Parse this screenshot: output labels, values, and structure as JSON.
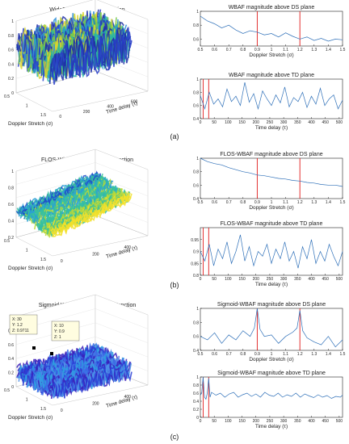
{
  "panels": [
    {
      "label": "(a)",
      "surface": {
        "title": "WideBand Ambiguity Function",
        "xlabel": "Doppler Stretch (σ)",
        "ylabel": "Time delay (τ)",
        "ztick_labels": [
          "0",
          "0.2",
          "0.4",
          "0.6",
          "0.8",
          "1"
        ],
        "xtick_labels": [
          "0.5",
          "1",
          "1.5"
        ],
        "ytick_labels": [
          "0",
          "200",
          "400",
          "600"
        ],
        "zlim": [
          0,
          1
        ],
        "style": "noisy"
      },
      "ds": {
        "type": "line",
        "title": "WBAF magnitude above DS plane",
        "xlabel": "Doppler Stretch (σ)",
        "xlim": [
          0.5,
          1.5
        ],
        "ylim": [
          0.5,
          1
        ],
        "xticks": [
          0.5,
          0.6,
          0.7,
          0.8,
          0.9,
          1,
          1.1,
          1.2,
          1.3,
          1.4,
          1.5
        ],
        "xtick_labels": [
          "0.5",
          "0.6",
          "0.7",
          "0.8",
          "0.9",
          "1",
          "1.1",
          "1.2",
          "1.3",
          "1.4",
          "1.5"
        ],
        "yticks": [
          0.6,
          0.8,
          1
        ],
        "ytick_labels": [
          "0.6",
          "0.8",
          "1"
        ],
        "red_lines": [
          0.9,
          1.2
        ],
        "x": [
          0.5,
          0.55,
          0.6,
          0.65,
          0.7,
          0.75,
          0.8,
          0.85,
          0.9,
          0.95,
          1.0,
          1.05,
          1.1,
          1.15,
          1.2,
          1.25,
          1.3,
          1.35,
          1.4,
          1.45,
          1.5
        ],
        "y": [
          0.93,
          0.86,
          0.82,
          0.76,
          0.8,
          0.73,
          0.68,
          0.72,
          0.7,
          0.66,
          0.68,
          0.63,
          0.69,
          0.64,
          0.6,
          0.63,
          0.58,
          0.61,
          0.57,
          0.6,
          0.59
        ]
      },
      "td": {
        "type": "line",
        "title": "WBAF magnitude above TD plane",
        "xlabel": "Time delay (τ)",
        "xlim": [
          0,
          512
        ],
        "ylim": [
          0.4,
          1
        ],
        "xticks": [
          0,
          50,
          100,
          150,
          200,
          250,
          300,
          350,
          400,
          450,
          500
        ],
        "xtick_labels": [
          "0",
          "50",
          "100",
          "150",
          "200",
          "250",
          "300",
          "350",
          "400",
          "450",
          "500"
        ],
        "yticks": [
          0.4,
          0.6,
          0.8,
          1
        ],
        "ytick_labels": [
          "0.4",
          "0.6",
          "0.8",
          "1"
        ],
        "red_lines": [
          10,
          30
        ],
        "x": [
          0,
          16,
          32,
          48,
          64,
          80,
          96,
          112,
          128,
          144,
          160,
          176,
          192,
          208,
          224,
          240,
          256,
          272,
          288,
          304,
          320,
          336,
          352,
          368,
          384,
          400,
          416,
          432,
          448,
          464,
          480,
          496,
          512
        ],
        "y": [
          0.75,
          0.55,
          0.8,
          0.62,
          0.7,
          0.58,
          0.85,
          0.66,
          0.74,
          0.6,
          0.95,
          0.65,
          0.78,
          0.55,
          0.82,
          0.7,
          0.6,
          0.76,
          0.64,
          0.88,
          0.58,
          0.72,
          0.66,
          0.8,
          0.57,
          0.74,
          0.62,
          0.86,
          0.6,
          0.7,
          0.76,
          0.55,
          0.68
        ]
      }
    },
    {
      "label": "(b)",
      "surface": {
        "title": "FLOS-WideBand Ambiguity Function",
        "xlabel": "Doppler Stretch (σ)",
        "ylabel": "Time delay (τ)",
        "ztick_labels": [
          "0.2",
          "0.4",
          "0.6",
          "0.8",
          "1"
        ],
        "xtick_labels": [
          "0.5",
          "1",
          "1.5"
        ],
        "ytick_labels": [
          "0",
          "200",
          "400"
        ],
        "zlim": [
          0.2,
          1
        ],
        "style": "smooth"
      },
      "ds": {
        "type": "line",
        "title": "FLOS-WBAF magnitude above DS plane",
        "xlabel": "Doppler Stretch (σ)",
        "xlim": [
          0.5,
          1.5
        ],
        "ylim": [
          0.4,
          1
        ],
        "xticks": [
          0.5,
          0.6,
          0.7,
          0.8,
          0.9,
          1,
          1.1,
          1.2,
          1.3,
          1.4,
          1.5
        ],
        "xtick_labels": [
          "0.5",
          "0.6",
          "0.7",
          "0.8",
          "0.9",
          "1",
          "1.1",
          "1.2",
          "1.3",
          "1.4",
          "1.5"
        ],
        "yticks": [
          0.4,
          0.6,
          0.8,
          1
        ],
        "ytick_labels": [
          "0.4",
          "0.6",
          "0.8",
          "1"
        ],
        "red_lines": [
          0.9,
          1.2
        ],
        "x": [
          0.5,
          0.55,
          0.6,
          0.65,
          0.7,
          0.75,
          0.8,
          0.85,
          0.9,
          0.95,
          1.0,
          1.05,
          1.1,
          1.15,
          1.2,
          1.25,
          1.3,
          1.35,
          1.4,
          1.45,
          1.5
        ],
        "y": [
          1.0,
          0.95,
          0.92,
          0.9,
          0.86,
          0.83,
          0.8,
          0.78,
          0.75,
          0.74,
          0.72,
          0.7,
          0.69,
          0.67,
          0.66,
          0.64,
          0.63,
          0.61,
          0.6,
          0.6,
          0.58
        ]
      },
      "td": {
        "type": "line",
        "title": "FLOS-WBAF magnitude above TD plane",
        "xlabel": "Time delay (τ)",
        "xlim": [
          0,
          512
        ],
        "ylim": [
          0.8,
          1
        ],
        "xticks": [
          0,
          50,
          100,
          150,
          200,
          250,
          300,
          350,
          400,
          450,
          500
        ],
        "xtick_labels": [
          "0",
          "50",
          "100",
          "150",
          "200",
          "250",
          "300",
          "350",
          "400",
          "450",
          "500"
        ],
        "yticks": [
          0.8,
          0.85,
          0.9,
          0.95
        ],
        "ytick_labels": [
          "0.8",
          "0.85",
          "0.9",
          "0.95"
        ],
        "red_lines": [
          10,
          30
        ],
        "x": [
          0,
          16,
          32,
          48,
          64,
          80,
          96,
          112,
          128,
          144,
          160,
          176,
          192,
          208,
          224,
          240,
          256,
          272,
          288,
          304,
          320,
          336,
          352,
          368,
          384,
          400,
          416,
          432,
          448,
          464,
          480,
          496,
          512
        ],
        "y": [
          0.9,
          0.86,
          0.93,
          0.84,
          0.91,
          0.87,
          0.94,
          0.85,
          0.9,
          0.97,
          0.86,
          0.92,
          0.84,
          0.9,
          0.88,
          0.93,
          0.85,
          0.91,
          0.87,
          0.94,
          0.86,
          0.9,
          0.83,
          0.92,
          0.87,
          0.95,
          0.85,
          0.9,
          0.86,
          0.93,
          0.88,
          0.84,
          0.9
        ]
      }
    },
    {
      "label": "(c)",
      "surface": {
        "title": "Sigmoid WideBand Ambiguity Function",
        "xlabel": "Doppler Stretch (σ)",
        "ylabel": "Time delay (τ)",
        "ztick_labels": [
          "0",
          "0.2",
          "0.4",
          "0.6",
          "0.8",
          "1"
        ],
        "xtick_labels": [
          "0.5",
          "1",
          "1.5"
        ],
        "ytick_labels": [
          "0",
          "200",
          "400"
        ],
        "zlim": [
          0,
          1
        ],
        "style": "flat",
        "datatips": [
          {
            "lines": [
              "X: 30",
              "Y: 1.2",
              "Z: 0.9711"
            ]
          },
          {
            "lines": [
              "X: 10",
              "Y: 0.9",
              "Z: 1"
            ]
          }
        ]
      },
      "ds": {
        "type": "line",
        "title": "Sigmoid-WBAF magnitude above DS plane",
        "xlabel": "Doppler Stretch (σ)",
        "xlim": [
          0.5,
          1.5
        ],
        "ylim": [
          0.4,
          1
        ],
        "xticks": [
          0.5,
          0.6,
          0.7,
          0.8,
          0.9,
          1,
          1.1,
          1.2,
          1.3,
          1.4,
          1.5
        ],
        "xtick_labels": [
          "0.5",
          "0.6",
          "0.7",
          "0.8",
          "0.9",
          "1",
          "1.1",
          "1.2",
          "1.3",
          "1.4",
          "1.5"
        ],
        "yticks": [
          0.4,
          0.6,
          0.8,
          1
        ],
        "ytick_labels": [
          "0.4",
          "0.6",
          "0.8",
          "1"
        ],
        "red_lines": [
          0.9,
          1.2
        ],
        "x": [
          0.5,
          0.55,
          0.6,
          0.65,
          0.7,
          0.75,
          0.8,
          0.85,
          0.88,
          0.9,
          0.92,
          0.95,
          1.0,
          1.05,
          1.1,
          1.15,
          1.18,
          1.2,
          1.22,
          1.25,
          1.3,
          1.35,
          1.4,
          1.45,
          1.5
        ],
        "y": [
          0.6,
          0.55,
          0.65,
          0.5,
          0.62,
          0.55,
          0.68,
          0.6,
          0.72,
          1.0,
          0.7,
          0.6,
          0.62,
          0.5,
          0.6,
          0.66,
          0.72,
          0.97,
          0.68,
          0.58,
          0.52,
          0.48,
          0.6,
          0.45,
          0.55
        ]
      },
      "td": {
        "type": "line",
        "title": "Sigmoid-WBAF magnitude above TD plane",
        "xlabel": "Time delay (τ)",
        "xlim": [
          0,
          512
        ],
        "ylim": [
          0,
          1
        ],
        "xticks": [
          0,
          50,
          100,
          150,
          200,
          250,
          300,
          350,
          400,
          450,
          500
        ],
        "xtick_labels": [
          "0",
          "50",
          "100",
          "150",
          "200",
          "250",
          "300",
          "350",
          "400",
          "450",
          "500"
        ],
        "yticks": [
          0,
          0.2,
          0.4,
          0.6,
          0.8,
          1
        ],
        "ytick_labels": [
          "0",
          "0.2",
          "0.4",
          "0.6",
          "0.8",
          "1"
        ],
        "red_lines": [
          10,
          30
        ],
        "x": [
          0,
          5,
          10,
          15,
          20,
          25,
          30,
          35,
          40,
          56,
          72,
          88,
          104,
          120,
          136,
          152,
          168,
          184,
          200,
          216,
          232,
          248,
          264,
          280,
          296,
          312,
          328,
          344,
          360,
          376,
          392,
          408,
          424,
          440,
          456,
          472,
          488,
          504,
          512
        ],
        "y": [
          0.55,
          0.6,
          1.0,
          0.5,
          0.45,
          0.6,
          0.97,
          0.5,
          0.62,
          0.55,
          0.6,
          0.5,
          0.58,
          0.62,
          0.5,
          0.56,
          0.6,
          0.52,
          0.58,
          0.5,
          0.62,
          0.55,
          0.52,
          0.6,
          0.5,
          0.56,
          0.52,
          0.6,
          0.5,
          0.58,
          0.53,
          0.49,
          0.56,
          0.5,
          0.54,
          0.47,
          0.52,
          0.5,
          0.55
        ]
      }
    }
  ]
}
